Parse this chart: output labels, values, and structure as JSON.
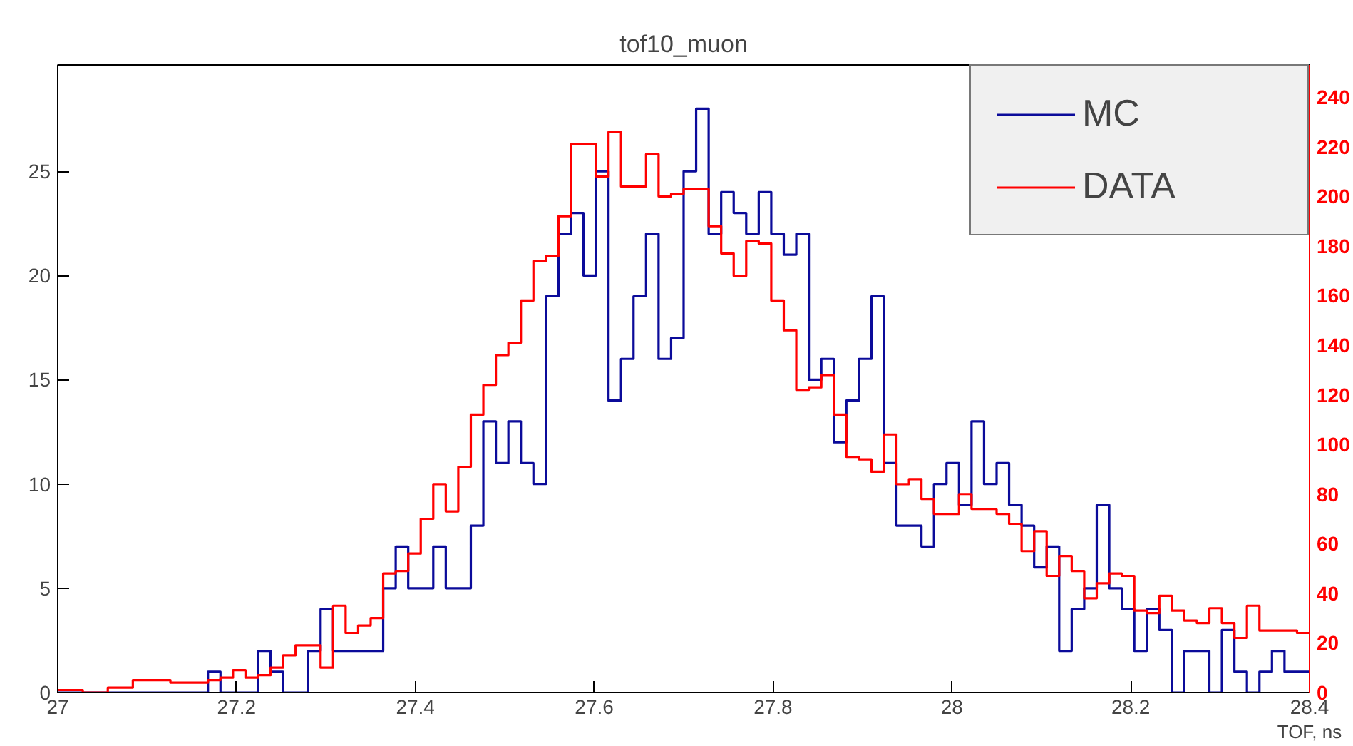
{
  "chart_data": {
    "type": "histogram",
    "title": "tof10_muon",
    "xlabel": "TOF, ns",
    "bins": [
      27.0,
      27.014,
      27.028,
      27.042,
      27.056,
      27.07,
      27.084,
      27.098,
      27.112,
      27.126,
      27.14,
      27.154,
      27.168,
      27.182,
      27.196,
      27.21,
      27.224,
      27.238,
      27.252,
      27.266,
      27.28,
      27.294,
      27.308,
      27.322,
      27.336,
      27.35,
      27.364,
      27.378,
      27.392,
      27.406,
      27.42,
      27.434,
      27.448,
      27.462,
      27.476,
      27.49,
      27.504,
      27.518,
      27.532,
      27.546,
      27.56,
      27.574,
      27.588,
      27.602,
      27.616,
      27.63,
      27.644,
      27.658,
      27.672,
      27.686,
      27.7,
      27.714,
      27.728,
      27.742,
      27.756,
      27.77,
      27.784,
      27.798,
      27.812,
      27.826,
      27.84,
      27.854,
      27.868,
      27.882,
      27.896,
      27.91,
      27.924,
      27.938,
      27.952,
      27.966,
      27.98,
      27.994,
      28.008,
      28.022,
      28.036,
      28.05,
      28.064,
      28.078,
      28.092,
      28.106,
      28.12,
      28.134,
      28.148,
      28.162,
      28.176,
      28.19,
      28.204,
      28.218,
      28.232,
      28.246,
      28.26,
      28.274,
      28.288,
      28.302,
      28.316,
      28.33,
      28.344,
      28.358,
      28.372,
      28.386,
      28.4
    ],
    "series": [
      {
        "name": "MC",
        "color": "#0b0b9a",
        "values": [
          0,
          0,
          0,
          0,
          0,
          0,
          0,
          0,
          0,
          0,
          0,
          0,
          1,
          0,
          0,
          0,
          2,
          1,
          0,
          0,
          2,
          4,
          2,
          2,
          2,
          2,
          5,
          7,
          5,
          5,
          7,
          5,
          5,
          8,
          13,
          11,
          13,
          11,
          10,
          19,
          22,
          23,
          20,
          25,
          14,
          16,
          19,
          22,
          16,
          17,
          25,
          28,
          22,
          24,
          23,
          22,
          24,
          22,
          21,
          22,
          15,
          16,
          12,
          14,
          16,
          19,
          11,
          8,
          8,
          7,
          10,
          11,
          9,
          13,
          10,
          11,
          9,
          8,
          6,
          7,
          2,
          4,
          5,
          9,
          5,
          4,
          2,
          4,
          3,
          0,
          2,
          2,
          0,
          3,
          1,
          0,
          1,
          2,
          1,
          1
        ]
      },
      {
        "name": "DATA",
        "color": "#ff0000",
        "axis": "y2",
        "values": [
          1,
          1,
          0,
          0,
          2,
          2,
          5,
          5,
          5,
          4,
          4,
          4,
          5,
          6,
          9,
          6,
          7,
          10,
          15,
          19,
          19,
          10,
          35,
          24,
          27,
          30,
          48,
          49,
          56,
          70,
          84,
          73,
          91,
          112,
          124,
          136,
          141,
          158,
          174,
          176,
          192,
          221,
          221,
          208,
          226,
          204,
          204,
          217,
          200,
          201,
          203,
          203,
          188,
          177,
          168,
          182,
          181,
          158,
          146,
          122,
          123,
          128,
          112,
          95,
          94,
          89,
          104,
          84,
          86,
          78,
          72,
          72,
          80,
          74,
          74,
          72,
          68,
          57,
          65,
          47,
          55,
          49,
          38,
          44,
          48,
          47,
          33,
          32,
          39,
          33,
          29,
          28,
          34,
          28,
          22,
          35,
          25,
          25,
          25,
          24
        ]
      }
    ],
    "xlim": [
      27,
      28.4
    ],
    "xticks": [
      {
        "value": 27,
        "label": "27"
      },
      {
        "value": 27.2,
        "label": "27.2"
      },
      {
        "value": 27.4,
        "label": "27.4"
      },
      {
        "value": 27.6,
        "label": "27.6"
      },
      {
        "value": 27.8,
        "label": "27.8"
      },
      {
        "value": 28,
        "label": "28"
      },
      {
        "value": 28.2,
        "label": "28.2"
      },
      {
        "value": 28.4,
        "label": "28.4"
      }
    ],
    "ylim": [
      0,
      30.1
    ],
    "yticks": [
      0,
      5,
      10,
      15,
      20,
      25
    ],
    "y2lim": [
      0,
      253
    ],
    "y2ticks": [
      0,
      20,
      40,
      60,
      80,
      100,
      120,
      140,
      160,
      180,
      200,
      220,
      240
    ],
    "grid": false,
    "legend": "top right"
  }
}
